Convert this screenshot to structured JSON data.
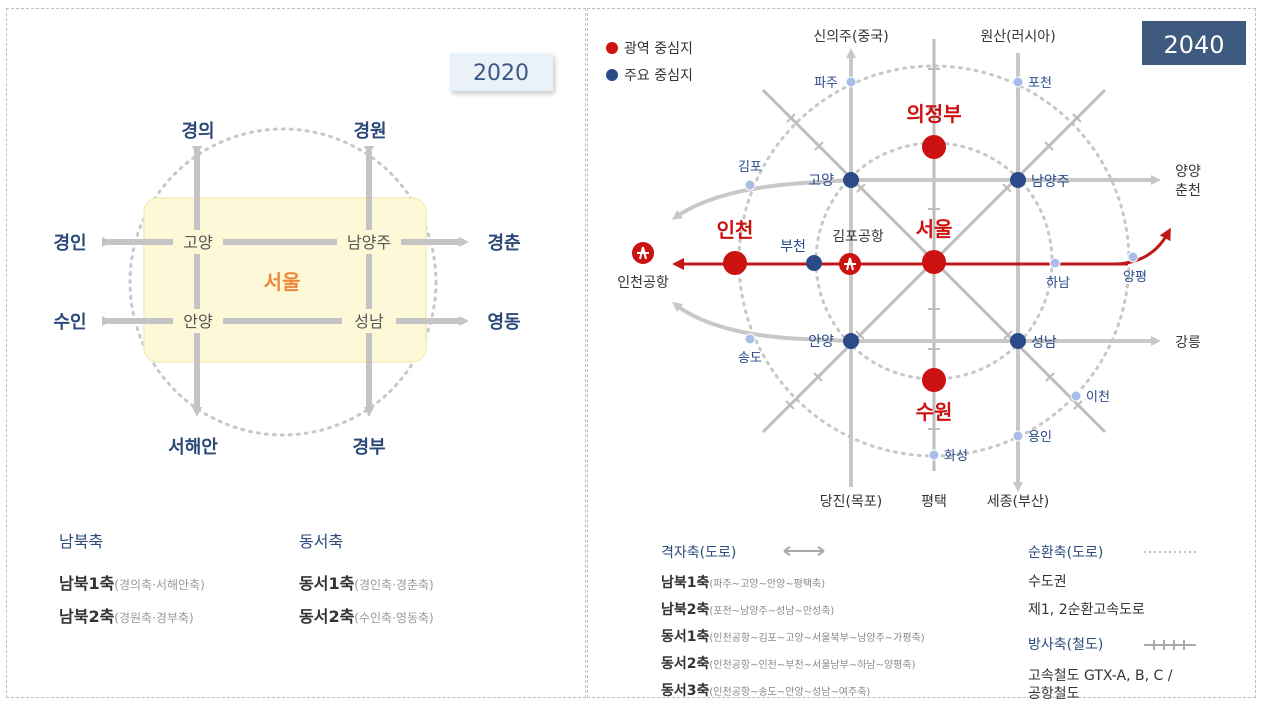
{
  "left": {
    "year": "2020",
    "center": "서울",
    "axes": {
      "top_left": "경의",
      "top_right": "경원",
      "left_top": "경인",
      "left_bottom": "수인",
      "right_top": "경춘",
      "right_bottom": "영동",
      "bottom_left": "서해안",
      "bottom_right": "경부"
    },
    "nodes": {
      "nw": "고양",
      "ne": "남양주",
      "sw": "안양",
      "se": "성남"
    },
    "legend": {
      "ns_title": "남북축",
      "ew_title": "동서축",
      "ns1": "남북1축",
      "ns1_detail": "(경의축·서해안축)",
      "ns2": "남북2축",
      "ns2_detail": "(경원축·경부축)",
      "ew1": "동서1축",
      "ew1_detail": "(경인축·경춘축)",
      "ew2": "동서2축",
      "ew2_detail": "(수인축·영동축)"
    }
  },
  "right": {
    "year": "2040",
    "key": {
      "red_label": "광역 중심지",
      "blue_label": "주요 중심지"
    },
    "colors": {
      "red": "#cc1111",
      "blue": "#2a4a8a",
      "light": "#9fb4e6",
      "arrow": "#c8c8c8",
      "year_bg": "#3e5a7e"
    },
    "top_ends": {
      "left": "신의주(중국)",
      "right": "원산(러시아)"
    },
    "bottom_ends": {
      "left": "당진(목포)",
      "mid": "평택",
      "right": "세종(부산)"
    },
    "right_ends": {
      "top": "양양",
      "top2": "춘천",
      "bottom": "강릉"
    },
    "left_end": "인천공항",
    "regional": {
      "north": "의정부",
      "center": "서울",
      "west": "인천",
      "south": "수원"
    },
    "major": {
      "goyang": "고양",
      "namyangju": "남양주",
      "anyang": "안양",
      "seongnam": "성남",
      "bucheon": "부천"
    },
    "minor": {
      "paju": "파주",
      "pocheon": "포천",
      "gimpo": "김포",
      "hanam": "하남",
      "yangpyeong": "양평",
      "songdo": "송도",
      "icheon": "이천",
      "yongin": "용인",
      "hwaseong": "화성"
    },
    "airport_label": "김포공항",
    "legend": {
      "grid_title": "격자축(도로)",
      "ring_title": "순환축(도로)",
      "ring_line1": "수도권",
      "ring_line2": "제1, 2순환고속도로",
      "radial_title": "방사축(철도)",
      "radial_line1": "고속철도 GTX-A, B, C /",
      "radial_line2": "공항철도",
      "rows": [
        {
          "name": "남북1축",
          "detail": "(파주~고양~안양~평택축)"
        },
        {
          "name": "남북2축",
          "detail": "(포천~남양주~성남~안성축)"
        },
        {
          "name": "동서1축",
          "detail": "(인천공항~김포~고양~서울북부~남양주~가평축)"
        },
        {
          "name": "동서2축",
          "detail": "(인천공항~인천~부천~서울남부~하남~양평축)"
        },
        {
          "name": "동서3축",
          "detail": "(인천공항~송도~안양~성남~여주축)"
        }
      ]
    }
  }
}
